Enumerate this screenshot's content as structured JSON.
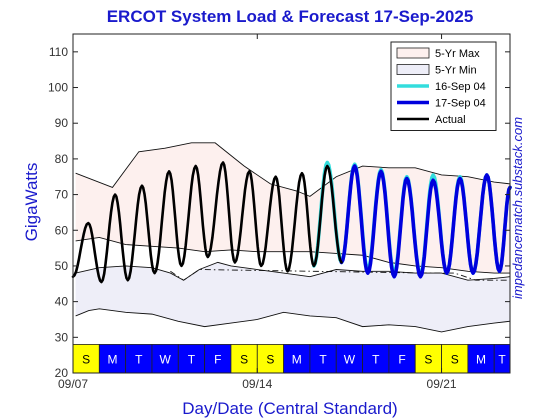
{
  "chart_data": {
    "type": "line",
    "title": "ERCOT System Load & Forecast 17-Sep-2025",
    "xlabel": "Day/Date (Central Standard)",
    "ylabel": "GigaWatts",
    "side_label": "impedancematch.substack.com",
    "xlim": [
      0,
      16.6
    ],
    "ylim": [
      20,
      115
    ],
    "yticks": [
      20,
      30,
      40,
      50,
      60,
      70,
      80,
      90,
      100,
      110
    ],
    "xticks": [
      {
        "x": 0,
        "label": "09/07"
      },
      {
        "x": 7,
        "label": "09/14"
      },
      {
        "x": 14,
        "label": "09/21"
      }
    ],
    "day_strip": {
      "ymin": 20,
      "ymax": 28,
      "weekend_color": "#ffff00",
      "weekday_color": "#0000ff",
      "days": [
        {
          "x": 0,
          "letter": "S",
          "weekend": true
        },
        {
          "x": 1,
          "letter": "M",
          "weekend": false
        },
        {
          "x": 2,
          "letter": "T",
          "weekend": false
        },
        {
          "x": 3,
          "letter": "W",
          "weekend": false
        },
        {
          "x": 4,
          "letter": "T",
          "weekend": false
        },
        {
          "x": 5,
          "letter": "F",
          "weekend": false
        },
        {
          "x": 6,
          "letter": "S",
          "weekend": true
        },
        {
          "x": 7,
          "letter": "S",
          "weekend": true
        },
        {
          "x": 8,
          "letter": "M",
          "weekend": false
        },
        {
          "x": 9,
          "letter": "T",
          "weekend": false
        },
        {
          "x": 10,
          "letter": "W",
          "weekend": false
        },
        {
          "x": 11,
          "letter": "T",
          "weekend": false
        },
        {
          "x": 12,
          "letter": "F",
          "weekend": false
        },
        {
          "x": 13,
          "letter": "S",
          "weekend": true
        },
        {
          "x": 14,
          "letter": "S",
          "weekend": true
        },
        {
          "x": 15,
          "letter": "M",
          "weekend": false
        },
        {
          "x": 16,
          "letter": "T",
          "weekend": false
        }
      ]
    },
    "legend": {
      "placement": "top-right",
      "entries": [
        {
          "key": "max",
          "label": "5-Yr Max",
          "type": "patch",
          "fill": "#fdf0ee"
        },
        {
          "key": "min",
          "label": "5-Yr Min",
          "type": "patch",
          "fill": "#eeeef8"
        },
        {
          "key": "f16",
          "label": "16-Sep 04",
          "type": "line",
          "color": "#33dddd"
        },
        {
          "key": "f17",
          "label": "17-Sep 04",
          "type": "line",
          "color": "#0000dd"
        },
        {
          "key": "act",
          "label": "Actual",
          "type": "line",
          "color": "#000000"
        }
      ]
    },
    "max_band": {
      "upper": [
        [
          0.1,
          76
        ],
        [
          1.5,
          72
        ],
        [
          2.5,
          82
        ],
        [
          3.5,
          83
        ],
        [
          4.5,
          84.5
        ],
        [
          5.4,
          84.5
        ],
        [
          6.5,
          78
        ],
        [
          7.5,
          73
        ],
        [
          8.5,
          71
        ],
        [
          9,
          69.5
        ],
        [
          10,
          75
        ],
        [
          11,
          78
        ],
        [
          12,
          77.5
        ],
        [
          13,
          77.5
        ],
        [
          14,
          75.5
        ],
        [
          15,
          75
        ],
        [
          16,
          73.5
        ],
        [
          16.6,
          73
        ]
      ],
      "lower": [
        [
          0.1,
          57
        ],
        [
          1,
          58
        ],
        [
          2,
          56
        ],
        [
          3,
          55.5
        ],
        [
          4,
          55
        ],
        [
          5,
          54
        ],
        [
          6,
          54.5
        ],
        [
          7,
          54
        ],
        [
          8,
          54
        ],
        [
          9,
          54
        ],
        [
          10,
          53.5
        ],
        [
          11,
          53
        ],
        [
          12,
          51
        ],
        [
          13,
          50
        ],
        [
          14,
          49.5
        ],
        [
          15,
          48.5
        ],
        [
          16,
          48
        ],
        [
          16.6,
          48
        ]
      ]
    },
    "min_band": {
      "upper": [
        [
          0.1,
          48
        ],
        [
          1,
          49.5
        ],
        [
          2,
          50
        ],
        [
          3,
          49.5
        ],
        [
          3.7,
          48
        ],
        [
          4.2,
          46
        ],
        [
          4.8,
          49
        ],
        [
          5.5,
          51
        ],
        [
          6,
          50
        ],
        [
          7,
          49
        ],
        [
          8,
          48
        ],
        [
          9,
          47
        ],
        [
          10,
          49
        ],
        [
          11,
          48.5
        ],
        [
          12,
          48.5
        ],
        [
          13,
          48
        ],
        [
          14,
          48
        ],
        [
          15,
          46
        ],
        [
          16,
          46.5
        ],
        [
          16.6,
          47
        ]
      ],
      "lower": [
        [
          0.1,
          36
        ],
        [
          0.6,
          37.5
        ],
        [
          1,
          38
        ],
        [
          2,
          37
        ],
        [
          3,
          36.5
        ],
        [
          4,
          34.5
        ],
        [
          5,
          33
        ],
        [
          6,
          34
        ],
        [
          7,
          35
        ],
        [
          8,
          37
        ],
        [
          9,
          36
        ],
        [
          10,
          35.5
        ],
        [
          11,
          33
        ],
        [
          12,
          33.5
        ],
        [
          13,
          33
        ],
        [
          14,
          31.5
        ],
        [
          15,
          33
        ],
        [
          16,
          34
        ],
        [
          16.6,
          34.5
        ]
      ]
    },
    "dashdot": [
      [
        3.7,
        48.5
      ],
      [
        4.2,
        46
      ],
      [
        4.8,
        49
      ],
      [
        13.5,
        48
      ],
      [
        14.5,
        48
      ],
      [
        15.3,
        46
      ],
      [
        16.6,
        46
      ]
    ],
    "series": [
      {
        "name": "Actual",
        "color": "#000000",
        "peaks": [
          [
            0.0,
            47
          ],
          [
            0.58,
            62
          ],
          [
            1.08,
            45.5
          ],
          [
            1.6,
            70
          ],
          [
            2.08,
            46
          ],
          [
            2.62,
            72.5
          ],
          [
            3.1,
            48
          ],
          [
            3.65,
            76.5
          ],
          [
            4.12,
            50
          ],
          [
            4.66,
            78
          ],
          [
            5.12,
            52.5
          ],
          [
            5.7,
            79
          ],
          [
            6.15,
            51
          ],
          [
            6.7,
            76.5
          ],
          [
            7.15,
            50
          ],
          [
            7.7,
            75
          ],
          [
            8.15,
            48.5
          ],
          [
            8.7,
            76
          ],
          [
            9.15,
            50
          ],
          [
            9.66,
            78
          ],
          [
            10.2,
            51
          ]
        ]
      },
      {
        "name": "16-Sep 04",
        "color": "#33dddd",
        "peaks": [
          [
            9.15,
            50
          ],
          [
            9.66,
            79
          ],
          [
            10.2,
            51
          ],
          [
            10.7,
            78.5
          ],
          [
            11.2,
            49
          ],
          [
            11.7,
            77
          ],
          [
            12.2,
            48
          ],
          [
            12.68,
            75
          ],
          [
            13.2,
            47.5
          ],
          [
            13.68,
            75.5
          ],
          [
            14.2,
            48
          ],
          [
            14.7,
            75
          ],
          [
            15.2,
            48
          ],
          [
            15.72,
            75.5
          ],
          [
            16.2,
            48.5
          ],
          [
            16.6,
            72
          ]
        ]
      },
      {
        "name": "17-Sep 04",
        "color": "#0000dd",
        "peaks": [
          [
            10.2,
            51
          ],
          [
            10.7,
            78
          ],
          [
            11.2,
            48
          ],
          [
            11.7,
            76.5
          ],
          [
            12.2,
            47
          ],
          [
            12.68,
            74.5
          ],
          [
            13.2,
            47
          ],
          [
            13.68,
            74
          ],
          [
            14.2,
            48
          ],
          [
            14.7,
            74.5
          ],
          [
            15.2,
            48
          ],
          [
            15.72,
            75.5
          ],
          [
            16.2,
            48.5
          ],
          [
            16.6,
            72
          ]
        ]
      }
    ]
  }
}
